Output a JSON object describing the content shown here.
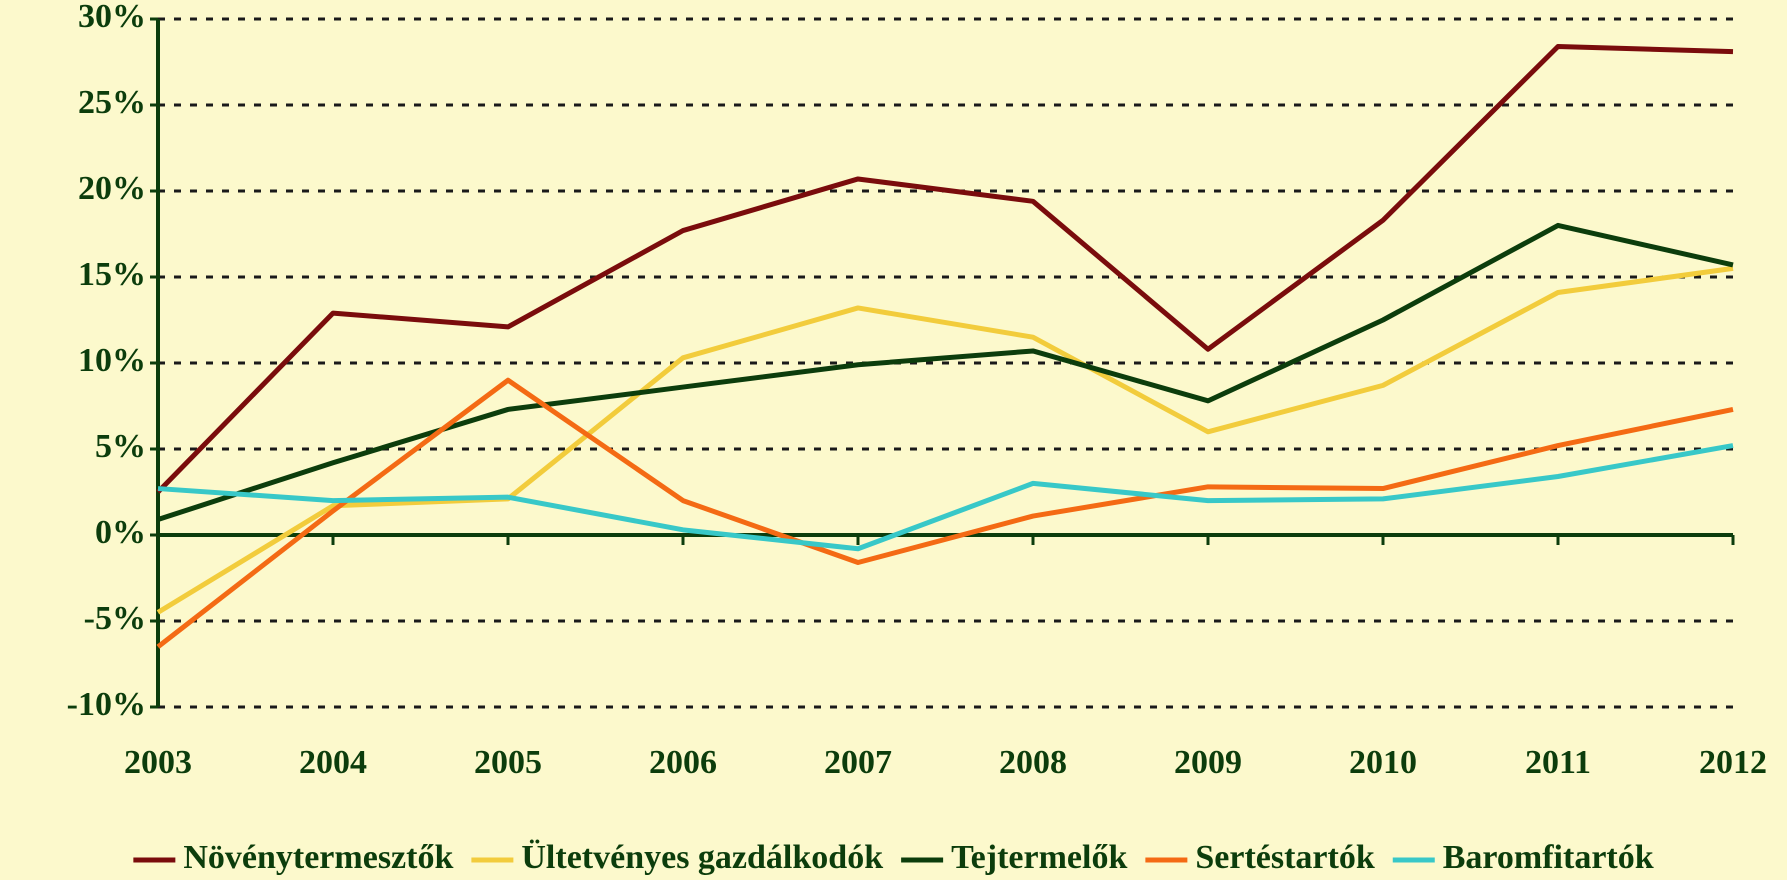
{
  "chart_data": {
    "type": "line",
    "categories": [
      "2003",
      "2004",
      "2005",
      "2006",
      "2007",
      "2008",
      "2009",
      "2010",
      "2011",
      "2012"
    ],
    "series": [
      {
        "name": "Növénytermesztők",
        "color": "#7a0c0c",
        "values": [
          2.5,
          12.9,
          12.1,
          17.7,
          20.7,
          19.4,
          10.8,
          18.3,
          28.4,
          28.1
        ]
      },
      {
        "name": "Ültetvényes gazdálkodók",
        "color": "#f2cc3c",
        "values": [
          -4.5,
          1.7,
          2.1,
          10.3,
          13.2,
          11.5,
          6.0,
          8.7,
          14.1,
          15.5
        ]
      },
      {
        "name": "Tejtermelők",
        "color": "#0c3d0c",
        "values": [
          0.9,
          4.2,
          7.3,
          8.6,
          9.9,
          10.7,
          7.8,
          12.5,
          18.0,
          15.7
        ]
      },
      {
        "name": "Sertéstartók",
        "color": "#f46a14",
        "values": [
          -6.5,
          1.4,
          9.0,
          2.0,
          -1.6,
          1.1,
          2.8,
          2.7,
          5.2,
          7.3
        ]
      },
      {
        "name": "Baromfitartók",
        "color": "#38c8c8",
        "values": [
          2.7,
          2.0,
          2.2,
          0.3,
          -0.8,
          3.0,
          2.0,
          2.1,
          3.4,
          5.2
        ]
      }
    ],
    "ylim": [
      -10,
      30
    ],
    "yticks": [
      {
        "value": -10,
        "label": "-10%"
      },
      {
        "value": -5,
        "label": "-5%"
      },
      {
        "value": 0,
        "label": "0%"
      },
      {
        "value": 5,
        "label": "5%"
      },
      {
        "value": 10,
        "label": "10%"
      },
      {
        "value": 15,
        "label": "15%"
      },
      {
        "value": 20,
        "label": "20%"
      },
      {
        "value": 25,
        "label": "25%"
      },
      {
        "value": 30,
        "label": "30%"
      }
    ],
    "grid": true,
    "legend": "bottom"
  }
}
